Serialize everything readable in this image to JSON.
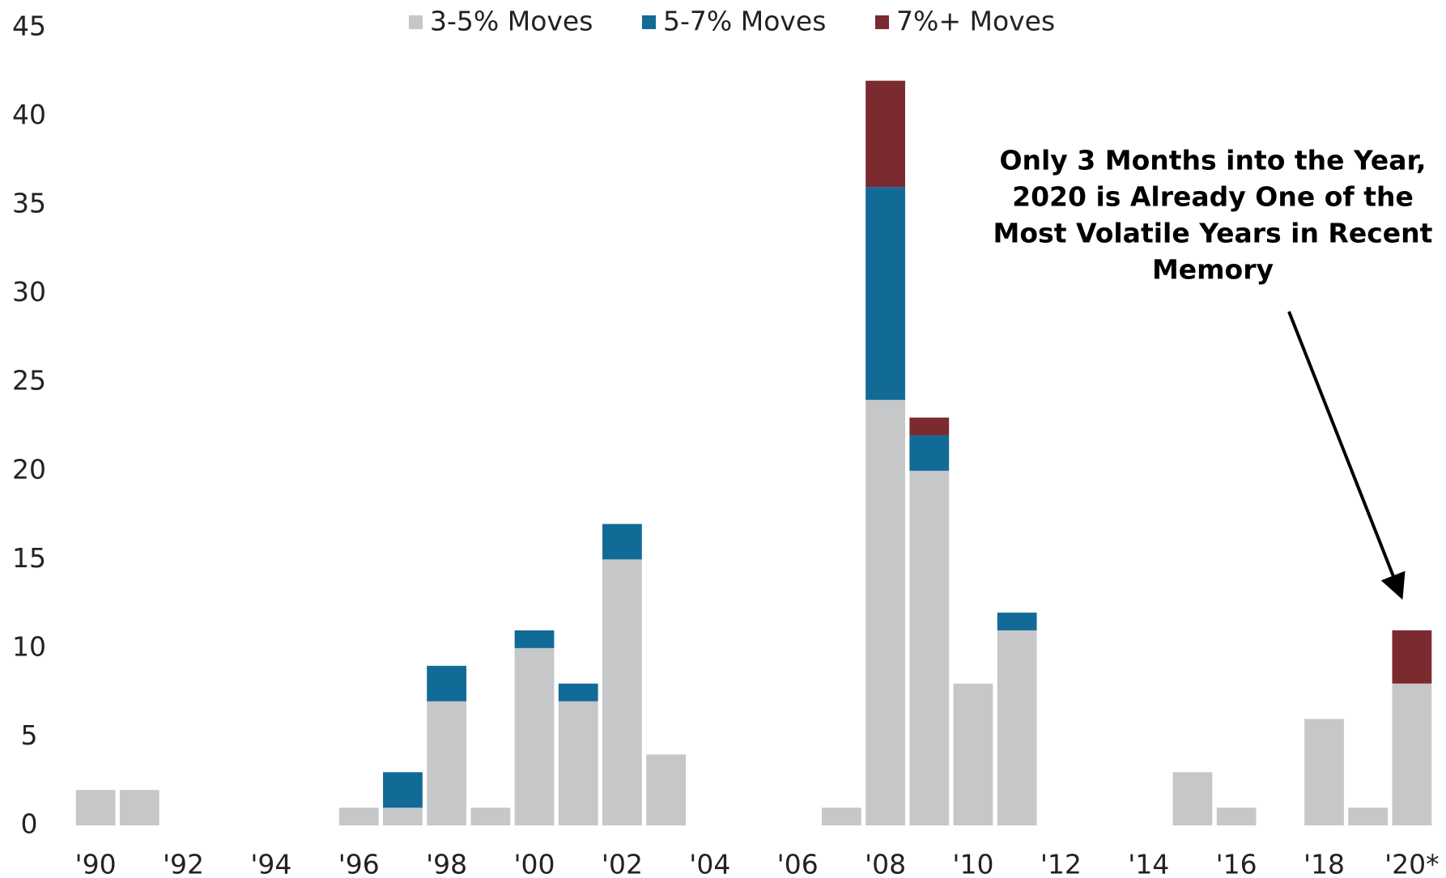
{
  "chart_data": {
    "type": "stacked-bar",
    "categories": [
      "'90",
      null,
      "'92",
      null,
      "'94",
      null,
      "'96",
      null,
      "'98",
      null,
      "'00",
      null,
      "'02",
      null,
      "'04",
      null,
      "'06",
      null,
      "'08",
      null,
      "'10",
      null,
      "'12",
      null,
      "'14",
      null,
      "'16",
      null,
      "'18",
      null,
      "'20*"
    ],
    "series": [
      {
        "name": "3-5% Moves",
        "color": "#c6c7c9",
        "values": [
          2,
          2,
          0,
          0,
          0,
          0,
          1,
          1,
          7,
          1,
          10,
          7,
          15,
          4,
          0,
          0,
          0,
          1,
          24,
          20,
          8,
          11,
          0,
          0,
          0,
          3,
          1,
          0,
          6,
          1,
          8
        ]
      },
      {
        "name": "5-7% Moves",
        "color": "#116b96",
        "values": [
          0,
          0,
          0,
          0,
          0,
          0,
          0,
          2,
          2,
          0,
          1,
          1,
          2,
          0,
          0,
          0,
          0,
          0,
          12,
          2,
          0,
          1,
          0,
          0,
          0,
          0,
          0,
          0,
          0,
          0,
          0
        ]
      },
      {
        "name": "7%+ Moves",
        "color": "#7b2a30",
        "values": [
          0,
          0,
          0,
          0,
          0,
          0,
          0,
          0,
          0,
          0,
          0,
          0,
          0,
          0,
          0,
          0,
          0,
          0,
          6,
          1,
          0,
          0,
          0,
          0,
          0,
          0,
          0,
          0,
          0,
          0,
          3
        ]
      }
    ],
    "ylim": [
      0,
      45
    ],
    "yticks": [
      0,
      5,
      10,
      15,
      20,
      25,
      30,
      35,
      40,
      45
    ],
    "legend": "top",
    "annotation": [
      "Only 3 Months into the Year,",
      "2020 is Already One of the",
      "Most Volatile Years in Recent",
      "Memory"
    ]
  }
}
